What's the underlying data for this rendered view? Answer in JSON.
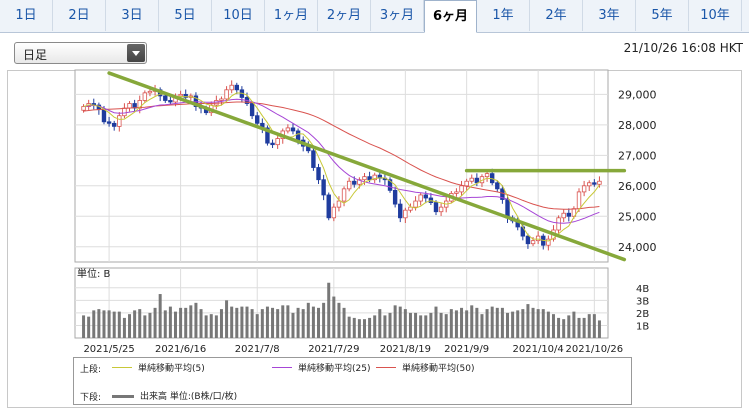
{
  "tabs": [
    "1日",
    "2日",
    "3日",
    "5日",
    "10日",
    "1ヶ月",
    "2ヶ月",
    "3ヶ月",
    "6ヶ月",
    "1年",
    "2年",
    "3年",
    "5年",
    "10年"
  ],
  "active_tab": 8,
  "select": {
    "value": "日足"
  },
  "timestamp": "21/10/26 16:08 HKT",
  "legend": {
    "upper_label": "上段:",
    "lower_label": "下段:",
    "ma5": "単純移動平均(5)",
    "ma25": "単純移動平均(25)",
    "ma50": "単純移動平均(50)",
    "volume": "出来高 単位:(B株/口/枚)"
  },
  "colors": {
    "up": "#d9534f",
    "down": "#1f3c9e",
    "ma5": "#c8c838",
    "ma25": "#a646d6",
    "ma50": "#d9534f",
    "trend": "#86a83a",
    "volume": "#777777"
  },
  "chart_data": [
    {
      "type": "candlestick",
      "y_ticks": [
        "29,000",
        "28,000",
        "27,000",
        "26,000",
        "25,000",
        "24,000"
      ],
      "ylim": [
        23500,
        29800
      ],
      "x_ticks": [
        "2021/5/25",
        "2021/6/16",
        "2021/7/8",
        "2021/7/29",
        "2021/8/19",
        "2021/9/9",
        "2021/10/4",
        "2021/10/26"
      ],
      "close": [
        28600,
        28700,
        28650,
        28500,
        28100,
        28050,
        27950,
        28300,
        28550,
        28700,
        28550,
        28800,
        29050,
        29100,
        29150,
        28950,
        28800,
        28750,
        28950,
        29000,
        28900,
        28950,
        28600,
        28550,
        28400,
        28650,
        28800,
        28850,
        29150,
        29300,
        29150,
        28900,
        28700,
        28300,
        28050,
        27900,
        27400,
        27350,
        27550,
        27800,
        27900,
        27800,
        27500,
        27300,
        27150,
        26600,
        26200,
        25700,
        24950,
        25300,
        25500,
        25900,
        26150,
        26050,
        26200,
        26300,
        26200,
        26350,
        26250,
        26200,
        25850,
        25400,
        24950,
        25200,
        25300,
        25500,
        25700,
        25600,
        25450,
        25150,
        25300,
        25500,
        25750,
        25800,
        26000,
        26150,
        26250,
        26100,
        26300,
        26400,
        26100,
        25900,
        25550,
        24950,
        24850,
        24650,
        24350,
        24100,
        24200,
        24350,
        24050,
        24250,
        24550,
        24950,
        25100,
        25000,
        25250,
        25800,
        26000,
        26100,
        26050,
        26150
      ],
      "ma5": [
        28600,
        28650,
        28650,
        28610,
        28510,
        28400,
        28250,
        28180,
        28190,
        28300,
        28420,
        28580,
        28730,
        28840,
        28930,
        29010,
        29010,
        28950,
        28920,
        28930,
        28920,
        28920,
        28880,
        28800,
        28680,
        28640,
        28600,
        28650,
        28770,
        28950,
        29050,
        29040,
        28980,
        28770,
        28550,
        28300,
        28070,
        27800,
        27640,
        27600,
        27590,
        27610,
        27710,
        27700,
        27530,
        27310,
        26950,
        26580,
        26110,
        25750,
        25530,
        25430,
        25540,
        25780,
        25970,
        26120,
        26180,
        26240,
        26260,
        26260,
        26160,
        26030,
        25780,
        25530,
        25310,
        25270,
        25330,
        25460,
        25510,
        25480,
        25440,
        25400,
        25430,
        25540,
        25670,
        25840,
        26000,
        26080,
        26180,
        26250,
        26230,
        26170,
        26000,
        25660,
        25270,
        24990,
        24650,
        24390,
        24250,
        24250,
        24210,
        24190,
        24270,
        24430,
        24570,
        24680,
        24970,
        25220,
        25430,
        25630,
        25800,
        26030
      ],
      "ma25": [
        28600,
        28620,
        28640,
        28620,
        28550,
        28470,
        28400,
        28380,
        28390,
        28420,
        28440,
        28470,
        28520,
        28570,
        28620,
        28650,
        28660,
        28680,
        28700,
        28720,
        28740,
        28760,
        28760,
        28750,
        28740,
        28740,
        28750,
        28770,
        28800,
        28830,
        28840,
        28830,
        28800,
        28760,
        28700,
        28630,
        28540,
        28440,
        28340,
        28250,
        28150,
        28050,
        27950,
        27850,
        27750,
        27600,
        27440,
        27240,
        27010,
        26800,
        26620,
        26470,
        26340,
        26250,
        26180,
        26130,
        26090,
        26060,
        26030,
        26000,
        25960,
        25920,
        25880,
        25850,
        25820,
        25790,
        25770,
        25750,
        25720,
        25690,
        25660,
        25640,
        25620,
        25610,
        25600,
        25610,
        25620,
        25620,
        25630,
        25650,
        25650,
        25640,
        25610,
        25560,
        25490,
        25410,
        25320,
        25220,
        25120,
        25020,
        24930,
        24850,
        24800,
        24780,
        24770,
        24790,
        24820,
        24870,
        24930,
        25000,
        25070,
        25130
      ],
      "ma50": [
        28450,
        28470,
        28490,
        28500,
        28510,
        28510,
        28520,
        28530,
        28540,
        28550,
        28560,
        28570,
        28580,
        28600,
        28620,
        28630,
        28640,
        28650,
        28660,
        28670,
        28680,
        28690,
        28700,
        28700,
        28700,
        28700,
        28710,
        28720,
        28730,
        28740,
        28750,
        28750,
        28740,
        28730,
        28710,
        28690,
        28660,
        28630,
        28600,
        28570,
        28530,
        28490,
        28450,
        28410,
        28360,
        28300,
        28230,
        28150,
        28060,
        27970,
        27880,
        27790,
        27700,
        27620,
        27540,
        27460,
        27380,
        27310,
        27240,
        27160,
        27080,
        26990,
        26900,
        26800,
        26700,
        26610,
        26520,
        26440,
        26360,
        26290,
        26230,
        26170,
        26110,
        26060,
        26020,
        25980,
        25950,
        25920,
        25890,
        25860,
        25830,
        25800,
        25760,
        25710,
        25650,
        25590,
        25520,
        25460,
        25400,
        25350,
        25300,
        25270,
        25250,
        25240,
        25230,
        25230,
        25240,
        25250,
        25270,
        25290,
        25300,
        25320
      ],
      "trendlines": [
        {
          "from": [
            "2021/5/25",
            29700
          ],
          "to": [
            "2021/10/26",
            24400
          ]
        },
        {
          "from": [
            "2021/9/9",
            26500
          ],
          "to": [
            "2021/10/26",
            26500
          ]
        }
      ]
    },
    {
      "type": "bar",
      "unit_label": "単位: B",
      "y_ticks": [
        "4B",
        "3B",
        "2B",
        "1B"
      ],
      "ylim": [
        0,
        4.3
      ],
      "values": [
        1.8,
        1.7,
        2.2,
        2.3,
        2.2,
        2.2,
        2.1,
        2.1,
        1.6,
        1.9,
        2.2,
        2.3,
        1.8,
        2.0,
        2.4,
        3.5,
        2.2,
        2.5,
        2.1,
        2.4,
        2.4,
        2.6,
        2.8,
        2.3,
        1.8,
        1.9,
        1.8,
        2.3,
        3.0,
        2.5,
        2.4,
        2.5,
        2.5,
        2.3,
        1.9,
        2.3,
        2.5,
        2.4,
        2.3,
        2.6,
        2.6,
        2.0,
        2.4,
        2.3,
        2.8,
        2.5,
        2.4,
        2.8,
        4.4,
        3.3,
        2.8,
        2.4,
        1.7,
        1.6,
        1.5,
        1.5,
        1.6,
        1.8,
        2.3,
        1.8,
        2.0,
        2.6,
        2.5,
        2.3,
        2.0,
        2.0,
        1.8,
        1.8,
        2.0,
        2.5,
        2.0,
        1.9,
        2.3,
        2.2,
        2.4,
        2.2,
        2.6,
        2.4,
        1.9,
        2.3,
        2.5,
        2.4,
        2.4,
        2.0,
        2.1,
        2.2,
        2.3,
        2.7,
        2.4,
        2.3,
        2.3,
        2.1,
        1.9,
        1.6,
        1.5,
        1.8,
        2.1,
        1.6,
        1.6,
        1.9,
        1.9,
        1.4
      ]
    }
  ]
}
